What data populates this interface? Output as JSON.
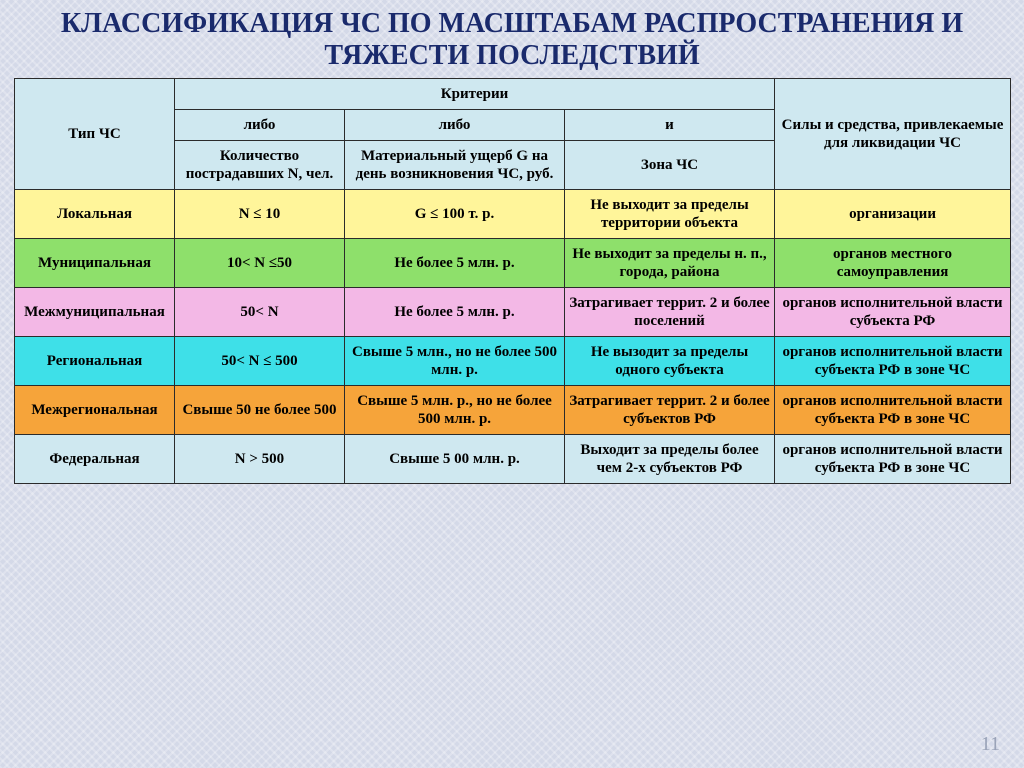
{
  "title": "КЛАССИФИКАЦИЯ  ЧС  ПО  МАСШТАБАМ РАСПРОСТРАНЕНИЯ И ТЯЖЕСТИ  ПОСЛЕДСТВИЙ",
  "page_number": "11",
  "header": {
    "type_col": "Тип ЧС",
    "criteria": "Критерии",
    "forces": "Силы и средства, привлекаемые для ликвидации ЧС",
    "or1": "либо",
    "or2": "либо",
    "and": "и",
    "n_col": "Количество пострадавших N, чел.",
    "g_col": "Материальный ущерб G на день возникновения ЧС, руб.",
    "zone_col": "Зона ЧС"
  },
  "row_colors": {
    "local": "#fff59a",
    "municipal": "#8ee06b",
    "intermunic": "#f3b8e6",
    "regional": "#3ee0e8",
    "interregion": "#f6a43a",
    "federal": "#cfe8f0"
  },
  "column_widths": [
    "160px",
    "170px",
    "220px",
    "210px",
    "236px"
  ],
  "rows": [
    {
      "key": "local",
      "type": "Локальная",
      "n": "N ≤ 10",
      "g": "G ≤ 100 т. р.",
      "zone": "Не выходит за пределы территории объекта",
      "forces": "организации"
    },
    {
      "key": "municipal",
      "type": "Муниципальная",
      "n": "10< N ≤50",
      "g": "Не более 5 млн. р.",
      "zone": "Не выходит за пределы н. п., города, района",
      "forces": "органов местного самоуправления"
    },
    {
      "key": "intermunic",
      "type": "Межмуниципальная",
      "n": "50< N",
      "g": "Не более 5 млн. р.",
      "zone": "Затрагивает террит. 2 и более поселений",
      "forces": "органов исполнительной власти субъекта РФ"
    },
    {
      "key": "regional",
      "type": "Региональная",
      "n": "50< N ≤ 500",
      "g": "Свыше 5 млн., но не более 500 млн. р.",
      "zone": "Не вызодит за пределы одного субъекта",
      "forces": "органов исполнительной власти субъекта РФ в зоне ЧС"
    },
    {
      "key": "interregion",
      "type": "Межрегиональная",
      "n": "Свыше 50 не более 500",
      "g": "Свыше 5 млн. р., но не более 500 млн. р.",
      "zone": "Затрагивает террит. 2 и более субъектов РФ",
      "forces": "органов исполнительной власти субъекта РФ в зоне ЧС"
    },
    {
      "key": "federal",
      "type": "Федеральная",
      "n": "N > 500",
      "g": "Свыше 5 00 млн. р.",
      "zone": "Выходит за пределы более чем 2-х субъектов РФ",
      "forces": "органов исполнительной власти субъекта РФ в зоне ЧС"
    }
  ]
}
